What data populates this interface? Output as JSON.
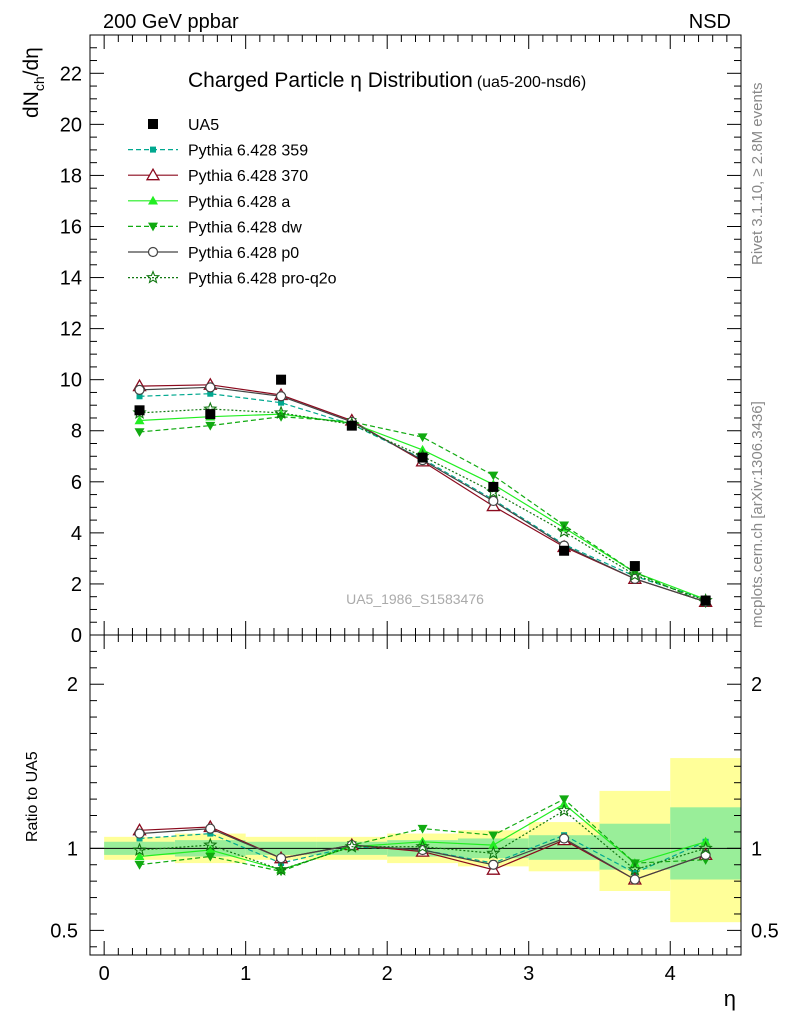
{
  "header": {
    "left": "200 GeV ppbar",
    "right": "NSD"
  },
  "side_labels": {
    "rivet": "Rivet 3.1.10, ≥ 2.8M events",
    "mcplots": "mcplots.cern.ch [arXiv:1306.3436]"
  },
  "watermark": "UA5_1986_S1583476",
  "chart_data": [
    {
      "type": "scatter",
      "title": "Charged Particle η Distribution",
      "subtitle": "(ua5-200-nsd6)",
      "ylabel": "dN/dη",
      "ylabel_main": "dN",
      "ylabel_sub": "ch",
      "ylabel_tail": "/dη",
      "xlim": [
        -0.1,
        4.5
      ],
      "ylim": [
        0,
        23.5
      ],
      "yticks": [
        0,
        2,
        4,
        6,
        8,
        10,
        12,
        14,
        16,
        18,
        20,
        22
      ],
      "ytick_labels": [
        "0",
        "2",
        "4",
        "6",
        "8",
        "10",
        "12",
        "14",
        "16",
        "18",
        "20",
        "22"
      ],
      "legend_position": "top-left",
      "x": [
        0.25,
        0.75,
        1.25,
        1.75,
        2.25,
        2.75,
        3.25,
        3.75,
        4.25
      ],
      "series": [
        {
          "name": "UA5",
          "color": "#000000",
          "marker": "square",
          "line": "none",
          "values": [
            8.8,
            8.65,
            10.0,
            8.2,
            6.95,
            5.8,
            3.3,
            2.7,
            1.35
          ]
        },
        {
          "name": "Pythia 6.428 359",
          "color": "#00a88f",
          "marker": "small-square",
          "line": "dashed",
          "values": [
            9.35,
            9.45,
            9.1,
            8.25,
            6.9,
            5.3,
            3.55,
            2.3,
            1.4
          ]
        },
        {
          "name": "Pythia 6.428 370",
          "color": "#8b0a1e",
          "marker": "open-triangle",
          "line": "solid",
          "values": [
            9.75,
            9.8,
            9.4,
            8.4,
            6.8,
            5.05,
            3.45,
            2.2,
            1.3
          ]
        },
        {
          "name": "Pythia 6.428 a",
          "color": "#22ee22",
          "marker": "triangle",
          "line": "solid",
          "values": [
            8.4,
            8.55,
            8.65,
            8.3,
            7.25,
            5.9,
            4.2,
            2.45,
            1.4
          ]
        },
        {
          "name": "Pythia 6.428 dw",
          "color": "#11aa11",
          "marker": "triangle-down",
          "line": "dashed",
          "values": [
            7.95,
            8.2,
            8.55,
            8.35,
            7.75,
            6.25,
            4.3,
            2.45,
            1.25
          ]
        },
        {
          "name": "Pythia 6.428 p0",
          "color": "#444444",
          "marker": "open-circle",
          "line": "solid",
          "values": [
            9.6,
            9.7,
            9.35,
            8.35,
            6.85,
            5.25,
            3.5,
            2.2,
            1.3
          ]
        },
        {
          "name": "Pythia 6.428 pro-q2o",
          "color": "#117711",
          "marker": "open-star",
          "line": "dotted",
          "values": [
            8.7,
            8.85,
            8.7,
            8.25,
            7.0,
            5.6,
            4.05,
            2.35,
            1.35
          ]
        }
      ]
    },
    {
      "type": "scatter",
      "xlabel": "η",
      "ylabel": "Ratio to UA5",
      "xlim": [
        -0.1,
        4.5
      ],
      "ylim": [
        0.35,
        2.3
      ],
      "xticks": [
        0,
        1,
        2,
        3,
        4
      ],
      "xtick_labels": [
        "0",
        "1",
        "2",
        "3",
        "4"
      ],
      "yticks": [
        0.5,
        1,
        2
      ],
      "ytick_labels": [
        "0.5",
        "1",
        "2"
      ],
      "reference_line": 1,
      "x": [
        0.25,
        0.75,
        1.25,
        1.75,
        2.25,
        2.75,
        3.25,
        3.75,
        4.25
      ],
      "bin_edges": [
        0,
        0.5,
        1.0,
        1.5,
        2.0,
        2.5,
        3.0,
        3.5,
        4.0,
        4.5
      ],
      "bands": {
        "outer_color": "#ffff99",
        "inner_color": "#99ee99",
        "outer_low": [
          0.93,
          0.91,
          0.93,
          0.93,
          0.91,
          0.89,
          0.86,
          0.74,
          0.55
        ],
        "outer_high": [
          1.07,
          1.09,
          1.07,
          1.07,
          1.09,
          1.11,
          1.16,
          1.35,
          1.55
        ],
        "inner_low": [
          0.96,
          0.95,
          0.96,
          0.96,
          0.95,
          0.94,
          0.93,
          0.87,
          0.81
        ],
        "inner_high": [
          1.04,
          1.05,
          1.04,
          1.04,
          1.05,
          1.06,
          1.08,
          1.15,
          1.25
        ]
      },
      "series": [
        {
          "name": "Pythia 6.428 359",
          "color": "#00a88f",
          "marker": "small-square",
          "line": "dashed",
          "values": [
            1.06,
            1.09,
            0.91,
            1.01,
            0.99,
            0.91,
            1.08,
            0.85,
            1.04
          ]
        },
        {
          "name": "Pythia 6.428 370",
          "color": "#8b0a1e",
          "marker": "open-triangle",
          "line": "solid",
          "values": [
            1.11,
            1.13,
            0.94,
            1.02,
            0.98,
            0.87,
            1.05,
            0.81,
            0.96
          ]
        },
        {
          "name": "Pythia 6.428 a",
          "color": "#22ee22",
          "marker": "triangle",
          "line": "solid",
          "values": [
            0.95,
            0.99,
            0.87,
            1.01,
            1.04,
            1.02,
            1.27,
            0.91,
            1.04
          ]
        },
        {
          "name": "Pythia 6.428 dw",
          "color": "#11aa11",
          "marker": "triangle-down",
          "line": "dashed",
          "values": [
            0.9,
            0.95,
            0.86,
            1.02,
            1.12,
            1.08,
            1.3,
            0.91,
            0.93
          ]
        },
        {
          "name": "Pythia 6.428 p0",
          "color": "#444444",
          "marker": "open-circle",
          "line": "solid",
          "values": [
            1.09,
            1.12,
            0.94,
            1.02,
            0.99,
            0.9,
            1.06,
            0.81,
            0.96
          ]
        },
        {
          "name": "Pythia 6.428 pro-q2o",
          "color": "#117711",
          "marker": "open-star",
          "line": "dotted",
          "values": [
            0.99,
            1.02,
            0.87,
            1.01,
            1.01,
            0.97,
            1.23,
            0.87,
            1.0
          ]
        }
      ]
    }
  ]
}
